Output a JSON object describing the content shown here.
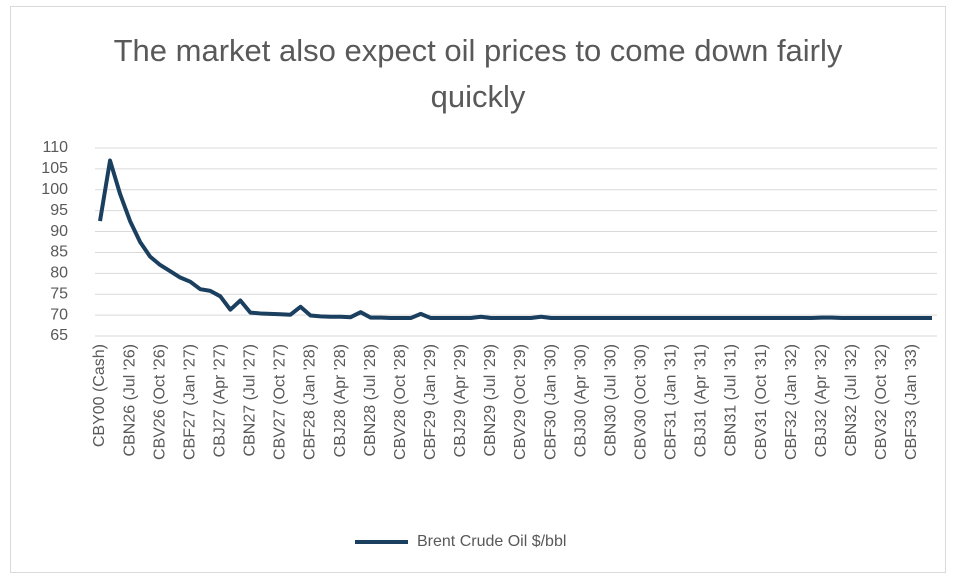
{
  "chart_data": {
    "type": "line",
    "title": "The market also expect oil prices to come down fairly quickly",
    "categories": [
      "CBY00 (Cash)",
      null,
      null,
      "CBN26 (Jul '26)",
      null,
      null,
      "CBV26 (Oct '26)",
      null,
      null,
      "CBF27 (Jan '27)",
      null,
      null,
      "CBJ27 (Apr '27)",
      null,
      null,
      "CBN27 (Jul '27)",
      null,
      null,
      "CBV27 (Oct '27)",
      null,
      null,
      "CBF28 (Jan '28)",
      null,
      null,
      "CBJ28 (Apr '28)",
      null,
      null,
      "CBN28 (Jul '28)",
      null,
      null,
      "CBV28 (Oct '28)",
      null,
      null,
      "CBF29 (Jan '29)",
      null,
      null,
      "CBJ29 (Apr '29)",
      null,
      null,
      "CBN29 (Jul '29)",
      null,
      null,
      "CBV29 (Oct '29)",
      null,
      null,
      "CBF30 (Jan '30)",
      null,
      null,
      "CBJ30 (Apr '30)",
      null,
      null,
      "CBN30 (Jul '30)",
      null,
      null,
      "CBV30 (Oct '30)",
      null,
      null,
      "CBF31 (Jan '31)",
      null,
      null,
      "CBJ31 (Apr '31)",
      null,
      null,
      "CBN31 (Jul '31)",
      null,
      null,
      "CBV31 (Oct '31)",
      null,
      null,
      "CBF32 (Jan '32)",
      null,
      null,
      "CBJ32 (Apr '32)",
      null,
      null,
      "CBN32 (Jul '32)",
      null,
      null,
      "CBV32 (Oct '32)",
      null,
      null,
      "CBF33 (Jan '33)",
      null,
      null
    ],
    "series": [
      {
        "name": "Brent Crude Oil $/bbl",
        "color": "#1b3f5f",
        "values": [
          92.5,
          107,
          99,
          92.5,
          87.5,
          84,
          82,
          80.5,
          79,
          78,
          76.2,
          75.8,
          74.5,
          71.3,
          73.5,
          70.6,
          70.4,
          70.3,
          70.2,
          70.1,
          72,
          69.9,
          69.7,
          69.6,
          69.6,
          69.5,
          70.7,
          69.4,
          69.4,
          69.3,
          69.3,
          69.3,
          70.3,
          69.3,
          69.3,
          69.3,
          69.3,
          69.3,
          69.6,
          69.3,
          69.3,
          69.3,
          69.3,
          69.3,
          69.6,
          69.3,
          69.3,
          69.3,
          69.3,
          69.3,
          69.3,
          69.3,
          69.3,
          69.3,
          69.3,
          69.3,
          69.3,
          69.3,
          69.3,
          69.3,
          69.3,
          69.3,
          69.3,
          69.3,
          69.3,
          69.3,
          69.3,
          69.3,
          69.3,
          69.3,
          69.3,
          69.3,
          69.4,
          69.4,
          69.3,
          69.3,
          69.3,
          69.3,
          69.3,
          69.3,
          69.3,
          69.3,
          69.3,
          69.3
        ]
      }
    ],
    "ylim": [
      65,
      110
    ],
    "yticks": [
      65,
      70,
      75,
      80,
      85,
      90,
      95,
      100,
      105,
      110
    ],
    "grid": true,
    "legend": "bottom"
  }
}
